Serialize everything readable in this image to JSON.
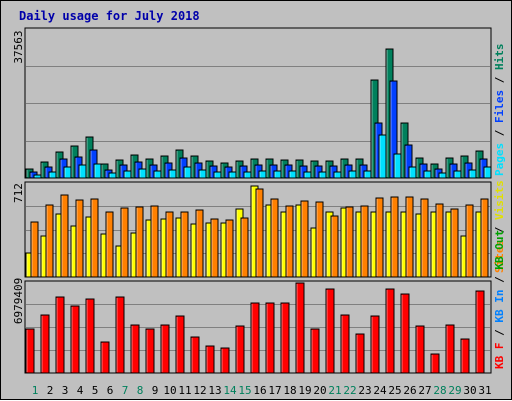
{
  "chart_data": [
    {
      "type": "bar",
      "panel": "hits-files-pages",
      "title": "Daily usage for July 2018",
      "categories": [
        "1",
        "2",
        "3",
        "4",
        "5",
        "6",
        "7",
        "8",
        "9",
        "10",
        "11",
        "12",
        "13",
        "14",
        "15",
        "16",
        "17",
        "18",
        "19",
        "20",
        "21",
        "22",
        "23",
        "24",
        "25",
        "26",
        "27",
        "28",
        "29",
        "30",
        "31"
      ],
      "weekend_days": [
        "1",
        "7",
        "8",
        "14",
        "15",
        "21",
        "22",
        "28",
        "29"
      ],
      "y_max_label": "37563",
      "ylim": [
        0,
        37563
      ],
      "series": [
        {
          "name": "Hits",
          "color": "#00805c",
          "values": [
            2300,
            4000,
            6500,
            8000,
            10500,
            3500,
            4600,
            5800,
            4800,
            5600,
            7000,
            5600,
            4200,
            3800,
            4200,
            4700,
            4700,
            4600,
            4500,
            4300,
            4300,
            4700,
            4700,
            24800,
            32800,
            14000,
            5100,
            3500,
            5100,
            5600,
            6800
          ]
        },
        {
          "name": "Files",
          "color": "#0040ff",
          "values": [
            1500,
            2700,
            4700,
            5400,
            7000,
            2100,
            3200,
            4000,
            3300,
            3800,
            5000,
            3900,
            3000,
            2700,
            3000,
            3300,
            3300,
            3200,
            3100,
            3000,
            3000,
            3200,
            3300,
            14000,
            24500,
            8300,
            3500,
            2400,
            3600,
            3900,
            4800
          ]
        },
        {
          "name": "Pages",
          "color": "#00e0ff",
          "values": [
            800,
            1500,
            2900,
            3200,
            3500,
            1200,
            1700,
            2200,
            1800,
            2100,
            2700,
            2100,
            1600,
            1500,
            1600,
            1800,
            1800,
            1700,
            1600,
            1600,
            1600,
            1700,
            1800,
            11000,
            6000,
            2800,
            1900,
            1300,
            1900,
            2100,
            2800
          ]
        }
      ],
      "legend": [
        "Pages",
        "Files",
        "Hits"
      ]
    },
    {
      "type": "bar",
      "panel": "visits-sites",
      "categories": [
        "1",
        "2",
        "3",
        "4",
        "5",
        "6",
        "7",
        "8",
        "9",
        "10",
        "11",
        "12",
        "13",
        "14",
        "15",
        "16",
        "17",
        "18",
        "19",
        "20",
        "21",
        "22",
        "23",
        "24",
        "25",
        "26",
        "27",
        "28",
        "29",
        "30",
        "31"
      ],
      "y_max_label": "712",
      "ylim": [
        0,
        712
      ],
      "series": [
        {
          "name": "Visits",
          "color": "#ffff00",
          "values": [
            180,
            315,
            485,
            390,
            460,
            330,
            235,
            335,
            440,
            445,
            455,
            405,
            410,
            410,
            520,
            700,
            555,
            500,
            555,
            375,
            495,
            525,
            500,
            495,
            495,
            495,
            485,
            495,
            500,
            315,
            500
          ]
        },
        {
          "name": "Sites",
          "color": "#ff8000",
          "values": [
            420,
            550,
            625,
            590,
            600,
            495,
            525,
            535,
            545,
            500,
            500,
            515,
            445,
            440,
            455,
            670,
            595,
            540,
            580,
            575,
            465,
            535,
            540,
            605,
            610,
            615,
            600,
            560,
            520,
            555,
            600
          ]
        }
      ],
      "legend": [
        "Sites",
        "Visits"
      ]
    },
    {
      "type": "bar",
      "panel": "kbytes",
      "categories": [
        "1",
        "2",
        "3",
        "4",
        "5",
        "6",
        "7",
        "8",
        "9",
        "10",
        "11",
        "12",
        "13",
        "14",
        "15",
        "16",
        "17",
        "18",
        "19",
        "20",
        "21",
        "22",
        "23",
        "24",
        "25",
        "26",
        "27",
        "28",
        "29",
        "30",
        "31"
      ],
      "y_max_label": "6979409",
      "ylim": [
        0,
        6979409
      ],
      "series": [
        {
          "name": "KB F",
          "color": "#ff0000",
          "values": [
            3450000,
            4510000,
            5900000,
            5200000,
            5700000,
            2400000,
            5900000,
            3700000,
            3450000,
            3700000,
            4400000,
            2800000,
            2100000,
            1900000,
            3650000,
            5400000,
            5400000,
            5400000,
            6979409,
            3450000,
            6500000,
            4500000,
            3050000,
            4450000,
            6500000,
            6100000,
            3650000,
            1450000,
            3750000,
            2600000,
            6350000
          ]
        }
      ],
      "legend": [
        "KB F",
        "KB In",
        "KB Out"
      ]
    }
  ],
  "legend_colors": {
    "pages": "#00e0ff",
    "files": "#0040ff",
    "hits": "#00805c",
    "sites": "#ff8000",
    "visits": "#e0e000",
    "kbf": "#ff0000",
    "kbin": "#0080ff",
    "kbout": "#00a000",
    "slash": "#000000"
  }
}
